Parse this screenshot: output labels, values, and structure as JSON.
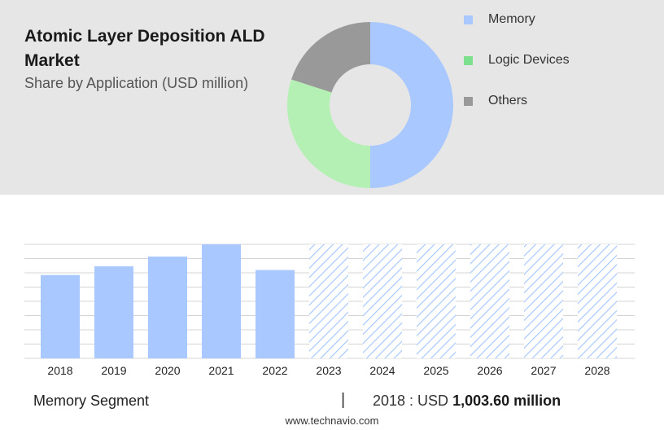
{
  "header": {
    "title": "Atomic Layer Deposition ALD Market",
    "subtitle": "Share by Application (USD million)"
  },
  "chart_data": [
    {
      "type": "pie",
      "title": "Atomic Layer Deposition ALD Market",
      "subtitle": "Share by Application (USD million)",
      "donut": true,
      "labels": [
        "Memory",
        "Logic Devices",
        "Others"
      ],
      "values": [
        50,
        30,
        20
      ],
      "colors": [
        "#a8c8ff",
        "#b4f0b4",
        "#999999"
      ],
      "legend_swatch_colors": [
        "#a8c8ff",
        "#7de08f",
        "#999999"
      ],
      "legend_position": "right"
    },
    {
      "type": "bar",
      "categories": [
        "2018",
        "2019",
        "2020",
        "2021",
        "2022",
        "2023",
        "2024",
        "2025",
        "2026",
        "2027",
        "2028"
      ],
      "values": [
        1003.6,
        1108.1,
        1225.7,
        1373.2,
        1063.4,
        null,
        null,
        null,
        null,
        null,
        null
      ],
      "forecast_categories": [
        "2023",
        "2024",
        "2025",
        "2026",
        "2027",
        "2028"
      ],
      "ylim": [
        0,
        1373.2
      ],
      "grid": true,
      "bar_color": "#a8c8ff",
      "forecast_color": "#a8c8ff"
    }
  ],
  "footer": {
    "segment": "Memory Segment",
    "divider": "|",
    "value_prefix": "2018 : USD ",
    "value_bold": "1,003.60 million"
  },
  "source": "www.technavio.com"
}
